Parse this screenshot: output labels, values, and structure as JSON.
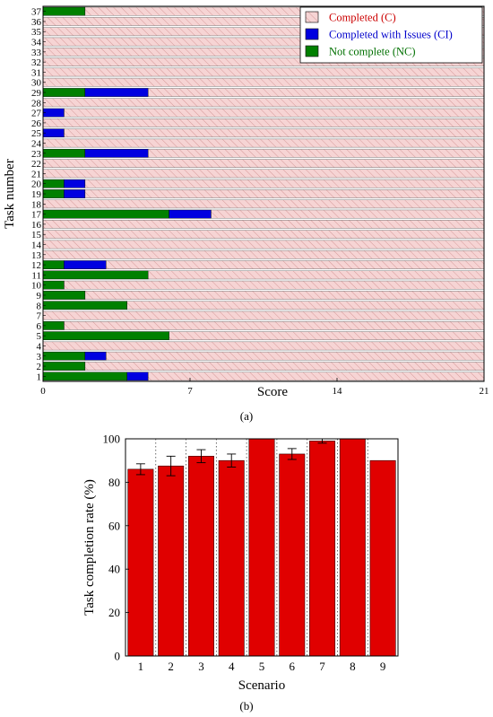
{
  "chart_data": [
    {
      "type": "bar",
      "orientation": "horizontal",
      "stacked": true,
      "panel_label": "(a)",
      "xlabel": "Score",
      "ylabel": "Task number",
      "xlim": [
        0,
        21
      ],
      "xticks": [
        "0",
        "7",
        "14",
        "21"
      ],
      "categories": [
        "1",
        "2",
        "3",
        "4",
        "5",
        "6",
        "7",
        "8",
        "9",
        "10",
        "11",
        "12",
        "13",
        "14",
        "15",
        "16",
        "17",
        "18",
        "19",
        "20",
        "21",
        "22",
        "23",
        "24",
        "25",
        "26",
        "27",
        "28",
        "29",
        "30",
        "31",
        "32",
        "33",
        "34",
        "35",
        "36",
        "37"
      ],
      "legend_position": "top-right",
      "series": [
        {
          "name": "Not complete (NC)",
          "color": "#008000",
          "values": [
            4,
            2,
            2,
            0,
            6,
            1,
            0,
            4,
            2,
            1,
            5,
            1,
            0,
            0,
            0,
            0,
            6,
            0,
            1,
            1,
            0,
            0,
            2,
            0,
            0,
            0,
            0,
            0,
            2,
            0,
            0,
            0,
            0,
            0,
            0,
            0,
            2
          ]
        },
        {
          "name": "Completed with Issues (CI)",
          "color": "#0000e0",
          "values": [
            1,
            0,
            1,
            0,
            0,
            0,
            0,
            0,
            0,
            0,
            0,
            2,
            0,
            0,
            0,
            0,
            2,
            0,
            1,
            1,
            0,
            0,
            3,
            0,
            1,
            0,
            1,
            0,
            3,
            0,
            0,
            0,
            0,
            0,
            0,
            0,
            0
          ]
        },
        {
          "name": "Completed (C)",
          "color": "#f6d4d4",
          "values": [
            16,
            19,
            18,
            21,
            15,
            20,
            21,
            17,
            19,
            20,
            16,
            18,
            21,
            21,
            21,
            21,
            13,
            21,
            19,
            19,
            21,
            21,
            16,
            21,
            20,
            21,
            20,
            21,
            16,
            21,
            21,
            21,
            21,
            21,
            21,
            21,
            19
          ]
        }
      ]
    },
    {
      "type": "bar",
      "panel_label": "(b)",
      "xlabel": "Scenario",
      "ylabel": "Task completion rate (%)",
      "ylim": [
        0,
        100
      ],
      "yticks": [
        "0",
        "20",
        "40",
        "60",
        "80",
        "100"
      ],
      "categories": [
        "1",
        "2",
        "3",
        "4",
        "5",
        "6",
        "7",
        "8",
        "9"
      ],
      "values": [
        86,
        87.5,
        92,
        90,
        100,
        93,
        99,
        100,
        90
      ],
      "errors": [
        2.5,
        4.5,
        3,
        3,
        0,
        2.5,
        1,
        0,
        0
      ],
      "color": "#e00000",
      "grid": "vertical dotted"
    }
  ]
}
